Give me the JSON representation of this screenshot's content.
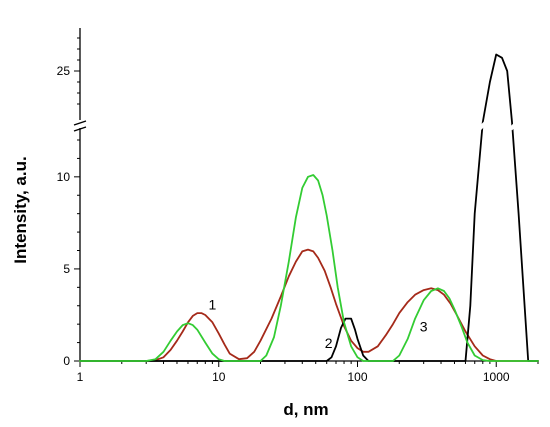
{
  "chart_data": {
    "type": "line",
    "xlabel": "d, nm",
    "ylabel": "Intensity, a.u.",
    "xscale": "log",
    "xlim": [
      1,
      2000
    ],
    "ylim_lower": [
      0,
      12
    ],
    "ylim_upper": [
      22,
      28
    ],
    "y_axis_break": true,
    "x_ticks": [
      "1",
      "10",
      "100",
      "1000"
    ],
    "y_ticks_lower": [
      "0",
      "5",
      "10"
    ],
    "y_ticks_upper": [
      "25"
    ],
    "grid": false,
    "series": [
      {
        "name": "1",
        "color": "#a52a1a",
        "x": [
          1,
          2,
          3,
          3.5,
          4,
          4.5,
          5,
          5.5,
          6,
          6.5,
          7,
          7.5,
          8,
          9,
          10,
          11,
          12,
          14,
          16,
          18,
          20,
          24,
          28,
          32,
          36,
          40,
          44,
          48,
          52,
          58,
          64,
          70,
          80,
          90,
          100,
          110,
          120,
          140,
          160,
          180,
          200,
          230,
          260,
          300,
          340,
          380,
          420,
          470,
          520,
          600,
          700,
          800,
          900,
          1000,
          1200,
          1500,
          2000
        ],
        "y": [
          0,
          0,
          0,
          0.05,
          0.2,
          0.6,
          1.1,
          1.6,
          2.1,
          2.45,
          2.6,
          2.6,
          2.5,
          2.1,
          1.5,
          0.9,
          0.4,
          0.1,
          0.15,
          0.5,
          1.1,
          2.3,
          3.5,
          4.6,
          5.4,
          5.95,
          6.05,
          5.95,
          5.6,
          4.9,
          4.0,
          3.1,
          1.9,
          1.1,
          0.7,
          0.5,
          0.5,
          0.8,
          1.4,
          2.0,
          2.6,
          3.2,
          3.6,
          3.85,
          3.95,
          3.85,
          3.6,
          3.1,
          2.5,
          1.6,
          0.8,
          0.3,
          0.1,
          0,
          0,
          0,
          0
        ]
      },
      {
        "name": "2",
        "color": "#000000",
        "x": [
          1,
          60,
          65,
          70,
          76,
          82,
          90,
          96,
          100,
          110,
          120,
          600,
          650,
          700,
          800,
          900,
          1000,
          1100,
          1200,
          1300,
          1450,
          1700,
          2000
        ],
        "y": [
          0,
          0,
          0.2,
          0.8,
          1.8,
          2.3,
          2.3,
          1.7,
          1.2,
          0.3,
          0,
          0,
          3,
          8,
          17,
          24,
          26.5,
          26.2,
          25,
          17,
          8,
          0,
          0
        ]
      },
      {
        "name": "3",
        "color": "#33cc33",
        "x": [
          1,
          3,
          3.5,
          4,
          4.5,
          5,
          5.5,
          6,
          6.5,
          7,
          8,
          9,
          10,
          11,
          20,
          22,
          25,
          28,
          32,
          36,
          40,
          44,
          48,
          52,
          56,
          60,
          66,
          72,
          80,
          90,
          100,
          110,
          180,
          200,
          230,
          260,
          300,
          340,
          380,
          420,
          460,
          500,
          560,
          620,
          700,
          800,
          900,
          2000
        ],
        "y": [
          0,
          0,
          0.1,
          0.5,
          1.1,
          1.6,
          1.95,
          2.05,
          1.95,
          1.7,
          1.0,
          0.4,
          0.1,
          0,
          0,
          0.3,
          1.3,
          3.0,
          5.4,
          7.8,
          9.4,
          10.0,
          10.1,
          9.8,
          9.0,
          7.9,
          6.0,
          4.0,
          2.1,
          0.8,
          0.2,
          0,
          0,
          0.3,
          1.2,
          2.3,
          3.3,
          3.8,
          3.95,
          3.8,
          3.4,
          2.8,
          1.9,
          1.0,
          0.3,
          0.05,
          0,
          0
        ]
      }
    ],
    "annotations": [
      {
        "text": "1",
        "x": 9,
        "y": 2.8
      },
      {
        "text": "2",
        "x": 62,
        "y": 0.7
      },
      {
        "text": "3",
        "x": 300,
        "y": 1.6
      }
    ]
  }
}
